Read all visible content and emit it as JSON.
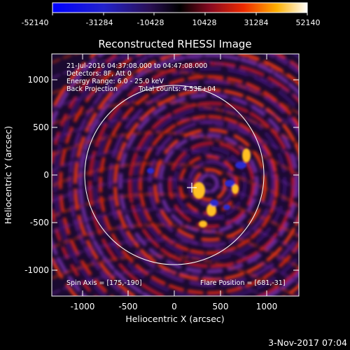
{
  "colorbar": {
    "ticks": [
      "-52140",
      "-31284",
      "-10428",
      "10428",
      "31284",
      "52140"
    ]
  },
  "plot": {
    "title": "Reconstructed RHESSI Image",
    "info": [
      "21-Jul-2016 04:37:08.000 to 04:47:08.000",
      "Detectors: 8F, Att 0",
      "Energy Range: 6.0 - 25.0 keV",
      "Back Projection",
      "Total counts: 4.53E+04"
    ],
    "spin_axis": "Spin Axis = [175,-190]",
    "flare_position": "Flare Position = [681,-31]",
    "xlabel": "Heliocentric X (arcsec)",
    "ylabel": "Heliocentric Y (arcsec)",
    "xticks": [
      "-1000",
      "-500",
      "0",
      "500",
      "1000"
    ],
    "yticks": [
      "1000",
      "500",
      "0",
      "-500",
      "-1000"
    ]
  },
  "footer": {
    "date": "3-Nov-2017 07:04"
  },
  "colors": {
    "background": "#000000",
    "axes": "#ffffff",
    "limb": "#ffffff"
  }
}
